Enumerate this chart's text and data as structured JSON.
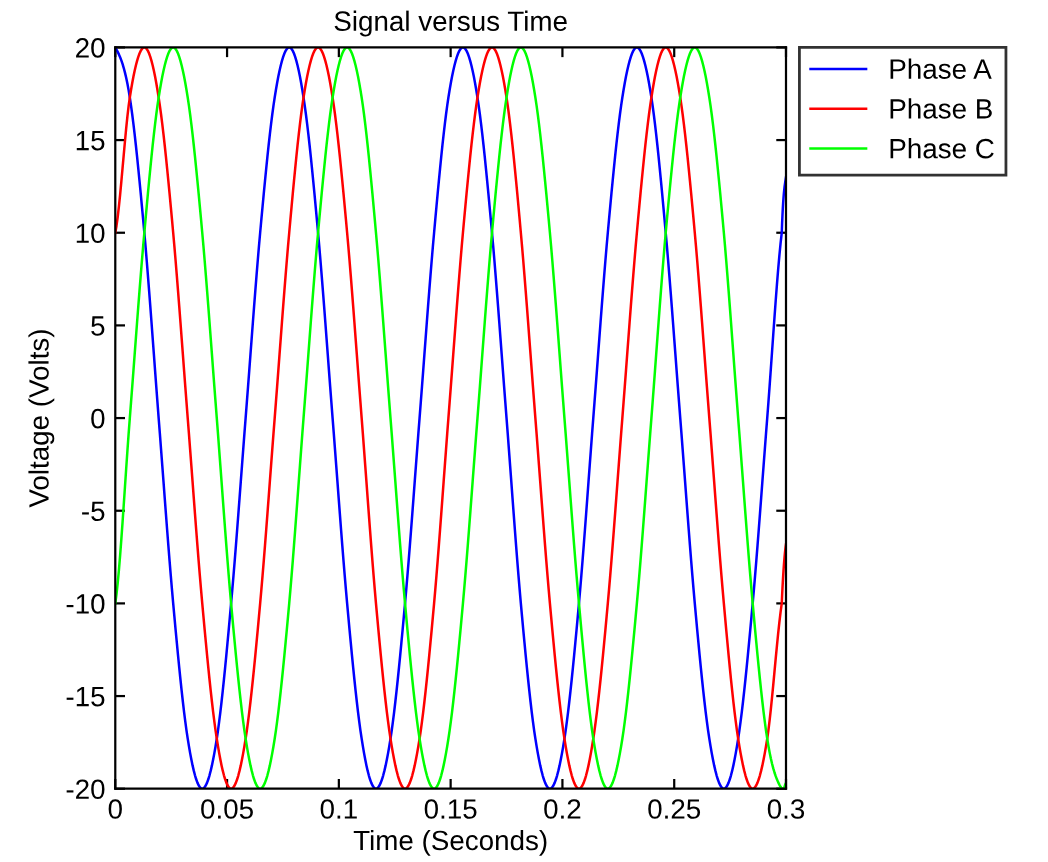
{
  "chart_data": {
    "type": "line",
    "title": "Signal versus Time",
    "xlabel": "Time (Seconds)",
    "ylabel": "Voltage (Volts)",
    "x": [
      0,
      0.0065,
      0.013,
      0.0194,
      0.0259,
      0.0324,
      0.0389,
      0.0454,
      0.0518,
      0.0583,
      0.0648,
      0.0713,
      0.0778,
      0.0842,
      0.0907,
      0.0972,
      0.1037,
      0.1102,
      0.1166,
      0.1231,
      0.1296,
      0.1361,
      0.1426,
      0.149,
      0.1555,
      0.162,
      0.1685,
      0.175,
      0.1814,
      0.1879,
      0.1944,
      0.2009,
      0.2074,
      0.2138,
      0.2203,
      0.2268,
      0.2333,
      0.2398,
      0.2462,
      0.2527,
      0.2592,
      0.2657,
      0.2722,
      0.2786,
      0.2851,
      0.2916,
      0.2981,
      0.3
    ],
    "series": [
      {
        "name": "Phase A",
        "color": "#0000ff",
        "values": [
          20,
          17.3,
          10,
          0,
          -10,
          -17.3,
          -20,
          -17.3,
          -10,
          0,
          10,
          17.3,
          20,
          17.3,
          10,
          0,
          -10,
          -17.3,
          -20,
          -17.3,
          -10,
          0,
          10,
          17.3,
          20,
          17.3,
          10,
          0,
          -10,
          -17.3,
          -20,
          -17.3,
          -10,
          0,
          10,
          17.3,
          20,
          17.3,
          10,
          0,
          -10,
          -17.3,
          -20,
          -17.3,
          -10,
          0,
          10,
          13
        ]
      },
      {
        "name": "Phase B",
        "color": "#ff0000",
        "values": [
          10,
          17.3,
          20,
          17.3,
          10,
          0,
          -10,
          -17.3,
          -20,
          -17.3,
          -10,
          0,
          10,
          17.3,
          20,
          17.3,
          10,
          0,
          -10,
          -17.3,
          -20,
          -17.3,
          -10,
          0,
          10,
          17.3,
          20,
          17.3,
          10,
          0,
          -10,
          -17.3,
          -20,
          -17.3,
          -10,
          0,
          10,
          17.3,
          20,
          17.3,
          10,
          0,
          -10,
          -17.3,
          -20,
          -17.3,
          -10,
          -6.8
        ]
      },
      {
        "name": "Phase C",
        "color": "#00ff00",
        "values": [
          -10,
          0,
          10,
          17.3,
          20,
          17.3,
          10,
          0,
          -10,
          -17.3,
          -20,
          -17.3,
          -10,
          0,
          10,
          17.3,
          20,
          17.3,
          10,
          0,
          -10,
          -17.3,
          -20,
          -17.3,
          -10,
          0,
          10,
          17.3,
          20,
          17.3,
          10,
          0,
          -10,
          -17.3,
          -20,
          -17.3,
          -10,
          0,
          10,
          17.3,
          20,
          17.3,
          10,
          0,
          -10,
          -17.3,
          -20,
          -19.7
        ]
      }
    ],
    "xlim": [
      0,
      0.3
    ],
    "xticks": [
      0,
      0.05,
      0.1,
      0.15,
      0.2,
      0.25,
      0.3
    ],
    "ylim": [
      -20,
      20
    ],
    "yticks": [
      -20,
      -15,
      -10,
      -5,
      0,
      5,
      10,
      15,
      20
    ],
    "grid": false,
    "legend": "right",
    "marker": "none",
    "line_style": "solid"
  }
}
